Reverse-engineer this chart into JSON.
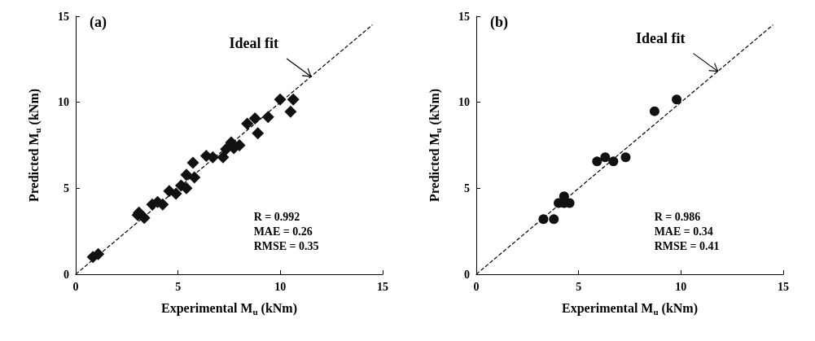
{
  "chart_data": [
    {
      "type": "scatter",
      "title": "(a)",
      "xlabel": "Experimental M$_{u}$ (kNm)",
      "ylabel": "Predicted M$_{u}$ (kNm)",
      "xlim": [
        0,
        15
      ],
      "ylim": [
        0,
        15
      ],
      "xticks": [
        0,
        5,
        10,
        15
      ],
      "yticks": [
        0,
        5,
        10,
        15
      ],
      "grid": false,
      "marker": "diamond",
      "annotations": [
        {
          "text": "Ideal fit",
          "x": 11.5,
          "y": 11.5
        },
        "R = 0.992",
        "MAE = 0.26",
        "RMSE = 0.35"
      ],
      "series": [
        {
          "color": "#111111",
          "x": [
            0.84,
            1.1,
            3.03,
            3.09,
            3.35,
            3.74,
            4.0,
            4.25,
            4.57,
            4.9,
            5.15,
            5.41,
            5.41,
            5.73,
            5.8,
            6.38,
            6.7,
            7.2,
            7.35,
            7.6,
            7.73,
            8.0,
            8.38,
            8.76,
            8.9,
            9.4,
            9.99,
            10.5,
            10.63
          ],
          "values": [
            1.0,
            1.17,
            3.44,
            3.59,
            3.28,
            4.06,
            4.2,
            4.06,
            4.84,
            4.69,
            5.16,
            5.78,
            5.0,
            6.48,
            5.63,
            6.88,
            6.8,
            6.8,
            7.27,
            7.66,
            7.34,
            7.5,
            8.75,
            9.06,
            8.2,
            9.14,
            10.16,
            9.45,
            10.16
          ]
        },
        {
          "type": "line",
          "color": "#000000",
          "line_style": "dashed",
          "marker": "none",
          "x": [
            0,
            14.5
          ],
          "values": [
            0,
            14.5
          ]
        }
      ]
    },
    {
      "type": "scatter",
      "title": "(b)",
      "xlabel": "Experimental M$_{u}$ (kNm)",
      "ylabel": "Predicted M$_{u}$ (kNm)",
      "xlim": [
        0,
        15
      ],
      "ylim": [
        0,
        15
      ],
      "xticks": [
        0,
        5,
        10,
        15
      ],
      "yticks": [
        0,
        5,
        10,
        15
      ],
      "grid": false,
      "marker": "circle",
      "annotations": [
        {
          "text": "Ideal fit",
          "x": 11.8,
          "y": 11.8
        },
        "R = 0.986",
        "MAE = 0.34",
        "RMSE = 0.41"
      ],
      "series": [
        {
          "color": "#111111",
          "x": [
            3.28,
            3.79,
            4.02,
            4.29,
            4.29,
            4.56,
            5.9,
            6.3,
            6.7,
            7.3,
            8.71,
            9.79
          ],
          "values": [
            3.2,
            3.2,
            4.14,
            4.53,
            4.14,
            4.14,
            6.56,
            6.8,
            6.56,
            6.8,
            9.48,
            10.16
          ]
        },
        {
          "type": "line",
          "color": "#000000",
          "line_style": "dashed",
          "marker": "none",
          "x": [
            0,
            14.5
          ],
          "values": [
            0,
            14.5
          ]
        }
      ]
    }
  ]
}
